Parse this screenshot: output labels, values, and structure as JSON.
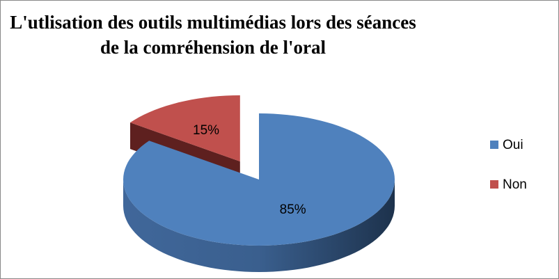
{
  "chart_data": {
    "type": "pie3d",
    "title": "L'utlisation des outils multimédias lors des séances de la comréhension de l'oral",
    "categories": [
      "Oui",
      "Non"
    ],
    "values": [
      85,
      15
    ],
    "value_labels": [
      "85%",
      "15%"
    ],
    "colors": [
      "#4f81bd",
      "#c0504d"
    ],
    "legend": "right"
  }
}
